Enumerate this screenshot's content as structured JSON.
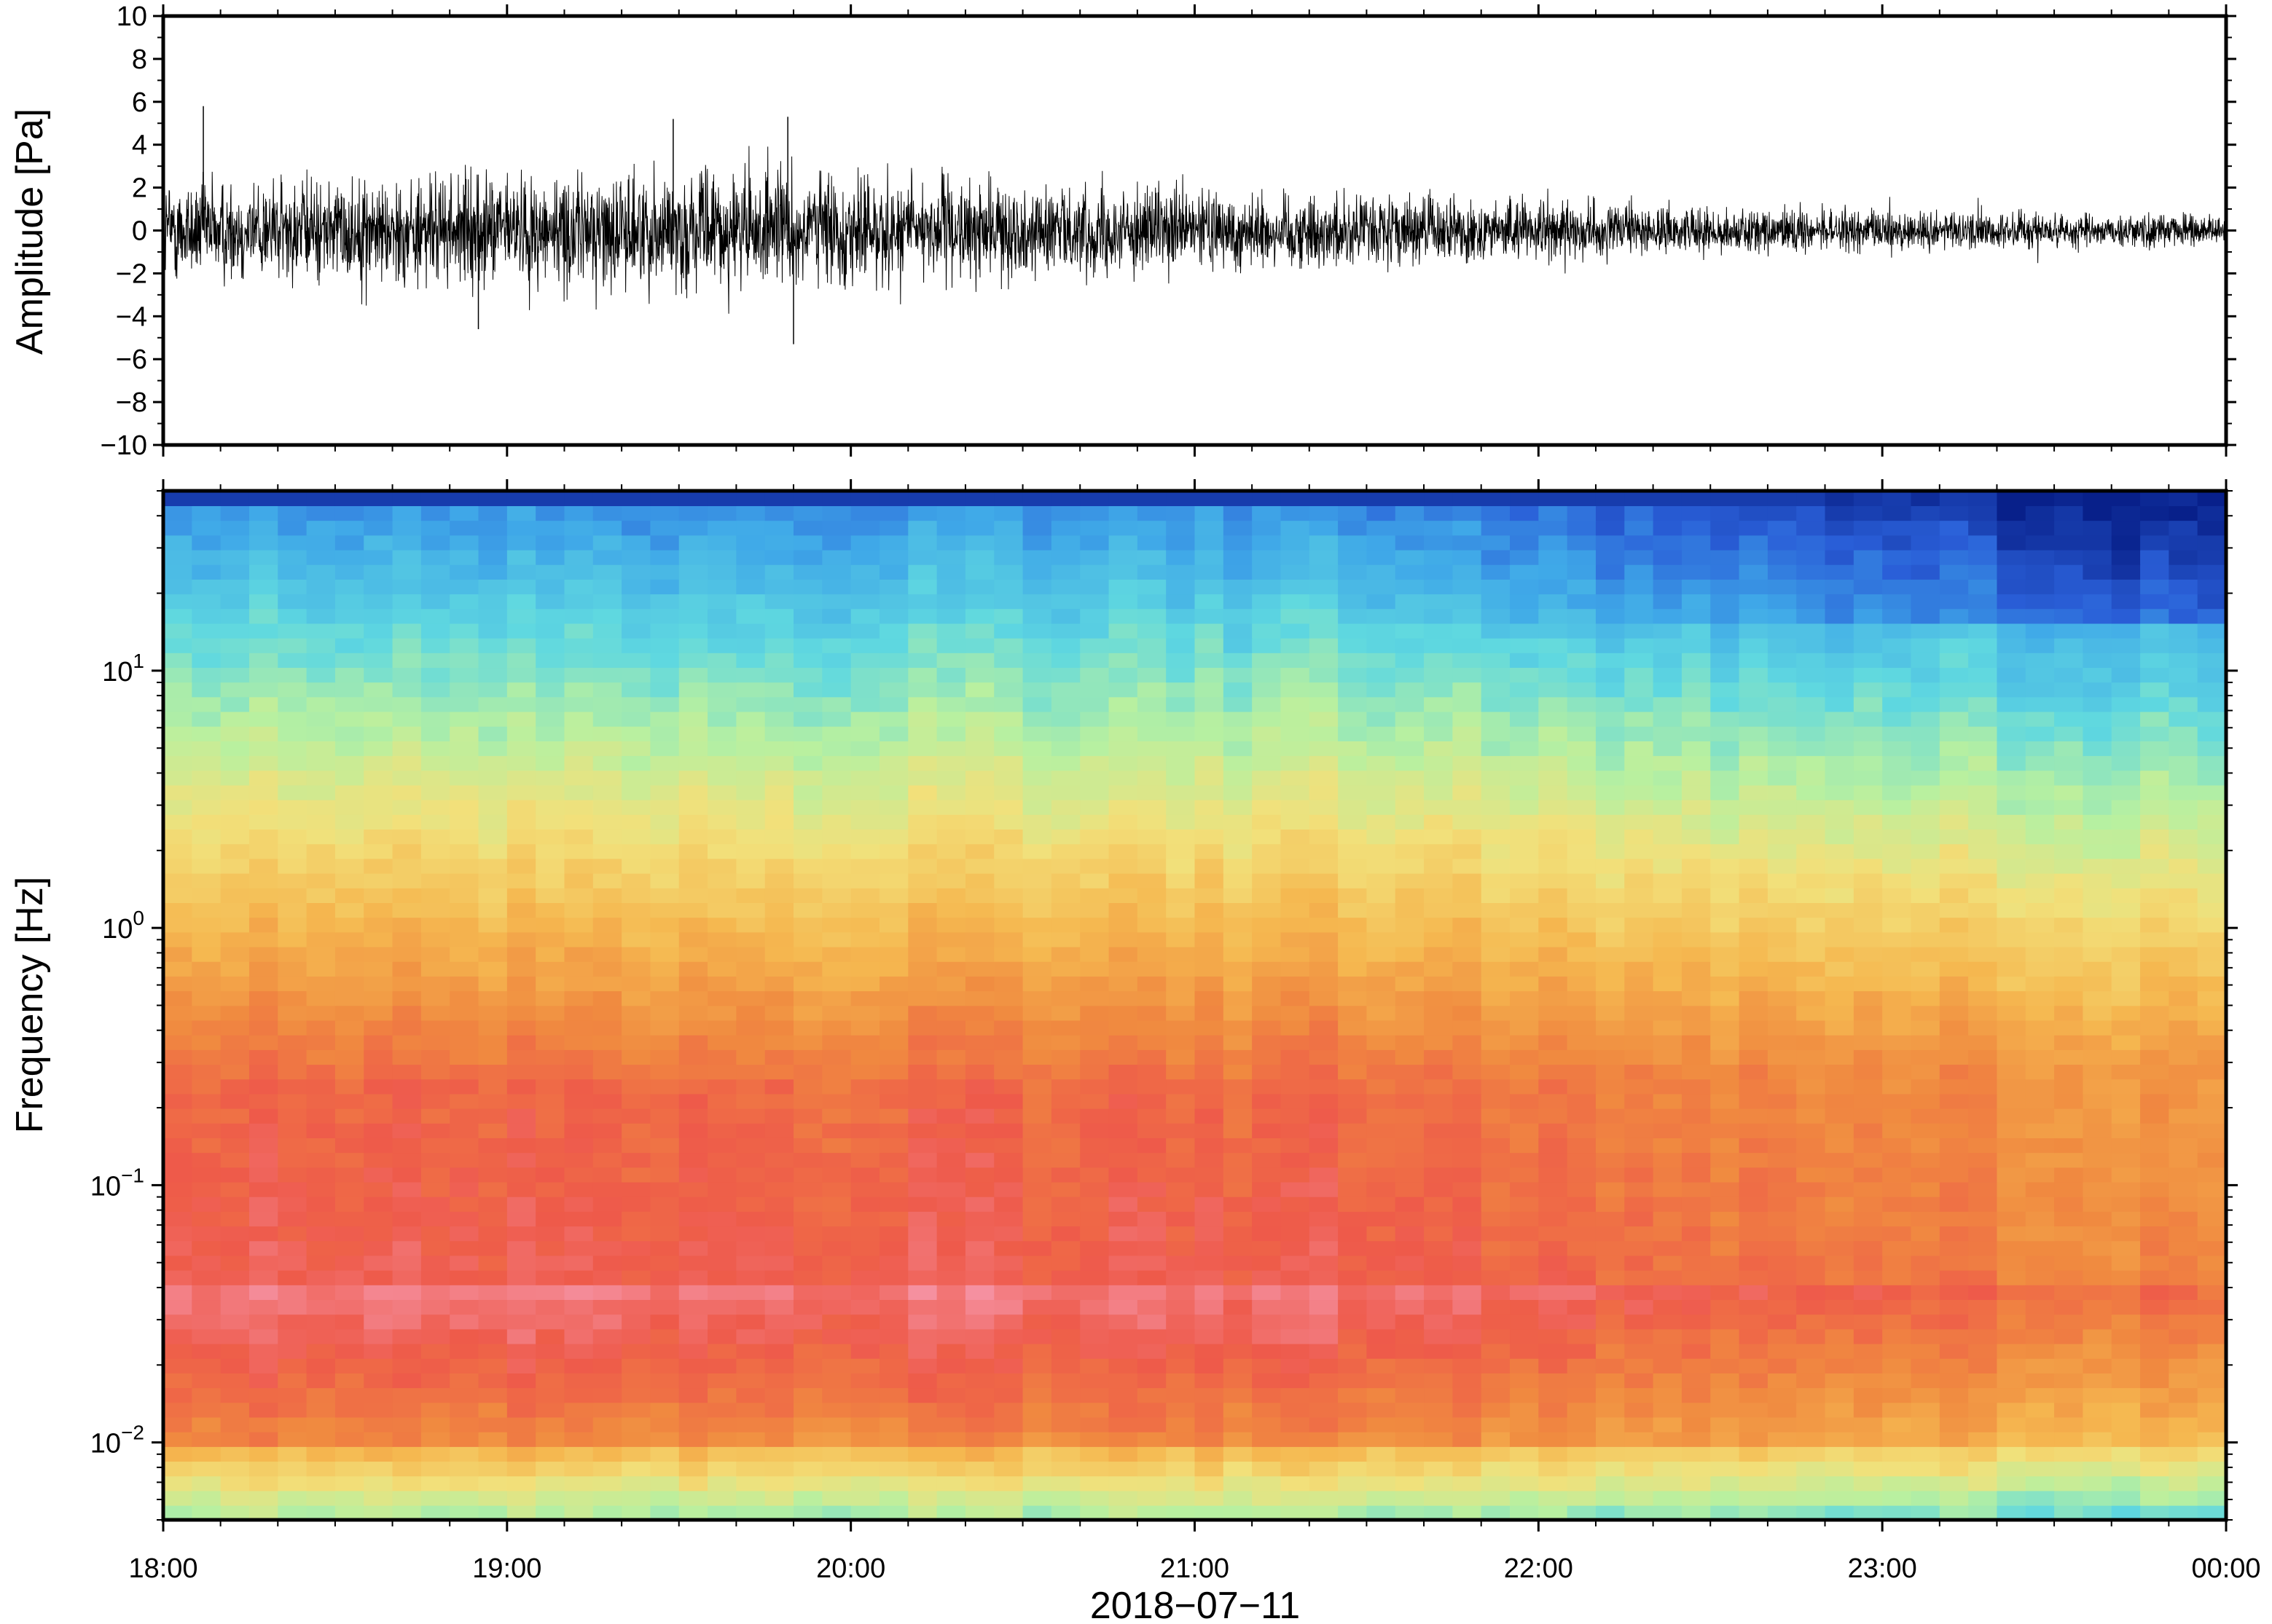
{
  "chart_data": [
    {
      "type": "line",
      "panel": "waveform",
      "ylabel": "Amplitude [Pa]",
      "ylim": [
        -10,
        10
      ],
      "y_ticks": [
        10,
        8,
        6,
        4,
        2,
        0,
        -2,
        -4,
        -6,
        -8,
        -10
      ],
      "y_tick_labels": [
        "10",
        "8",
        "6",
        "4",
        "2",
        "0",
        "−2",
        "−4",
        "−6",
        "−8",
        "−10"
      ],
      "x_range": [
        "18:00",
        "00:00"
      ],
      "line_color": "#000000",
      "envelope": {
        "times_h": [
          0.0,
          0.5,
          1.0,
          1.5,
          2.0,
          2.5,
          3.0,
          3.5,
          4.0,
          4.5,
          5.0,
          5.5,
          6.0
        ],
        "amplitude_pa": [
          3.0,
          3.0,
          3.2,
          3.4,
          3.3,
          2.6,
          2.3,
          2.1,
          1.7,
          1.3,
          1.2,
          1.1,
          0.9
        ]
      },
      "peak_spikes": [
        {
          "time": "18:07",
          "y": 5.8
        },
        {
          "time": "18:55",
          "y": -4.6
        },
        {
          "time": "19:29",
          "y": 5.2
        },
        {
          "time": "19:49",
          "y": 5.3
        },
        {
          "time": "19:50",
          "y": -5.3
        }
      ]
    },
    {
      "type": "heatmap",
      "panel": "spectrogram",
      "ylabel": "Frequency [Hz]",
      "y_scale": "log",
      "ylim": [
        0.005,
        50
      ],
      "y_tick_labels": [
        {
          "base": "10",
          "exp": "−2",
          "value": 0.01
        },
        {
          "base": "10",
          "exp": "−1",
          "value": 0.1
        },
        {
          "base": "10",
          "exp": "0",
          "value": 1
        },
        {
          "base": "10",
          "exp": "1",
          "value": 10
        }
      ],
      "x_tick_labels": [
        "18:00",
        "19:00",
        "20:00",
        "21:00",
        "22:00",
        "23:00",
        "00:00"
      ],
      "xlabel": "2018−07−11",
      "colormap": [
        "#08208a",
        "#2a5fd8",
        "#3fa8e8",
        "#5fd8e0",
        "#b8f0a0",
        "#f2e07a",
        "#f5b850",
        "#f08a40",
        "#ee5a4a",
        "#f590a0"
      ]
    }
  ]
}
